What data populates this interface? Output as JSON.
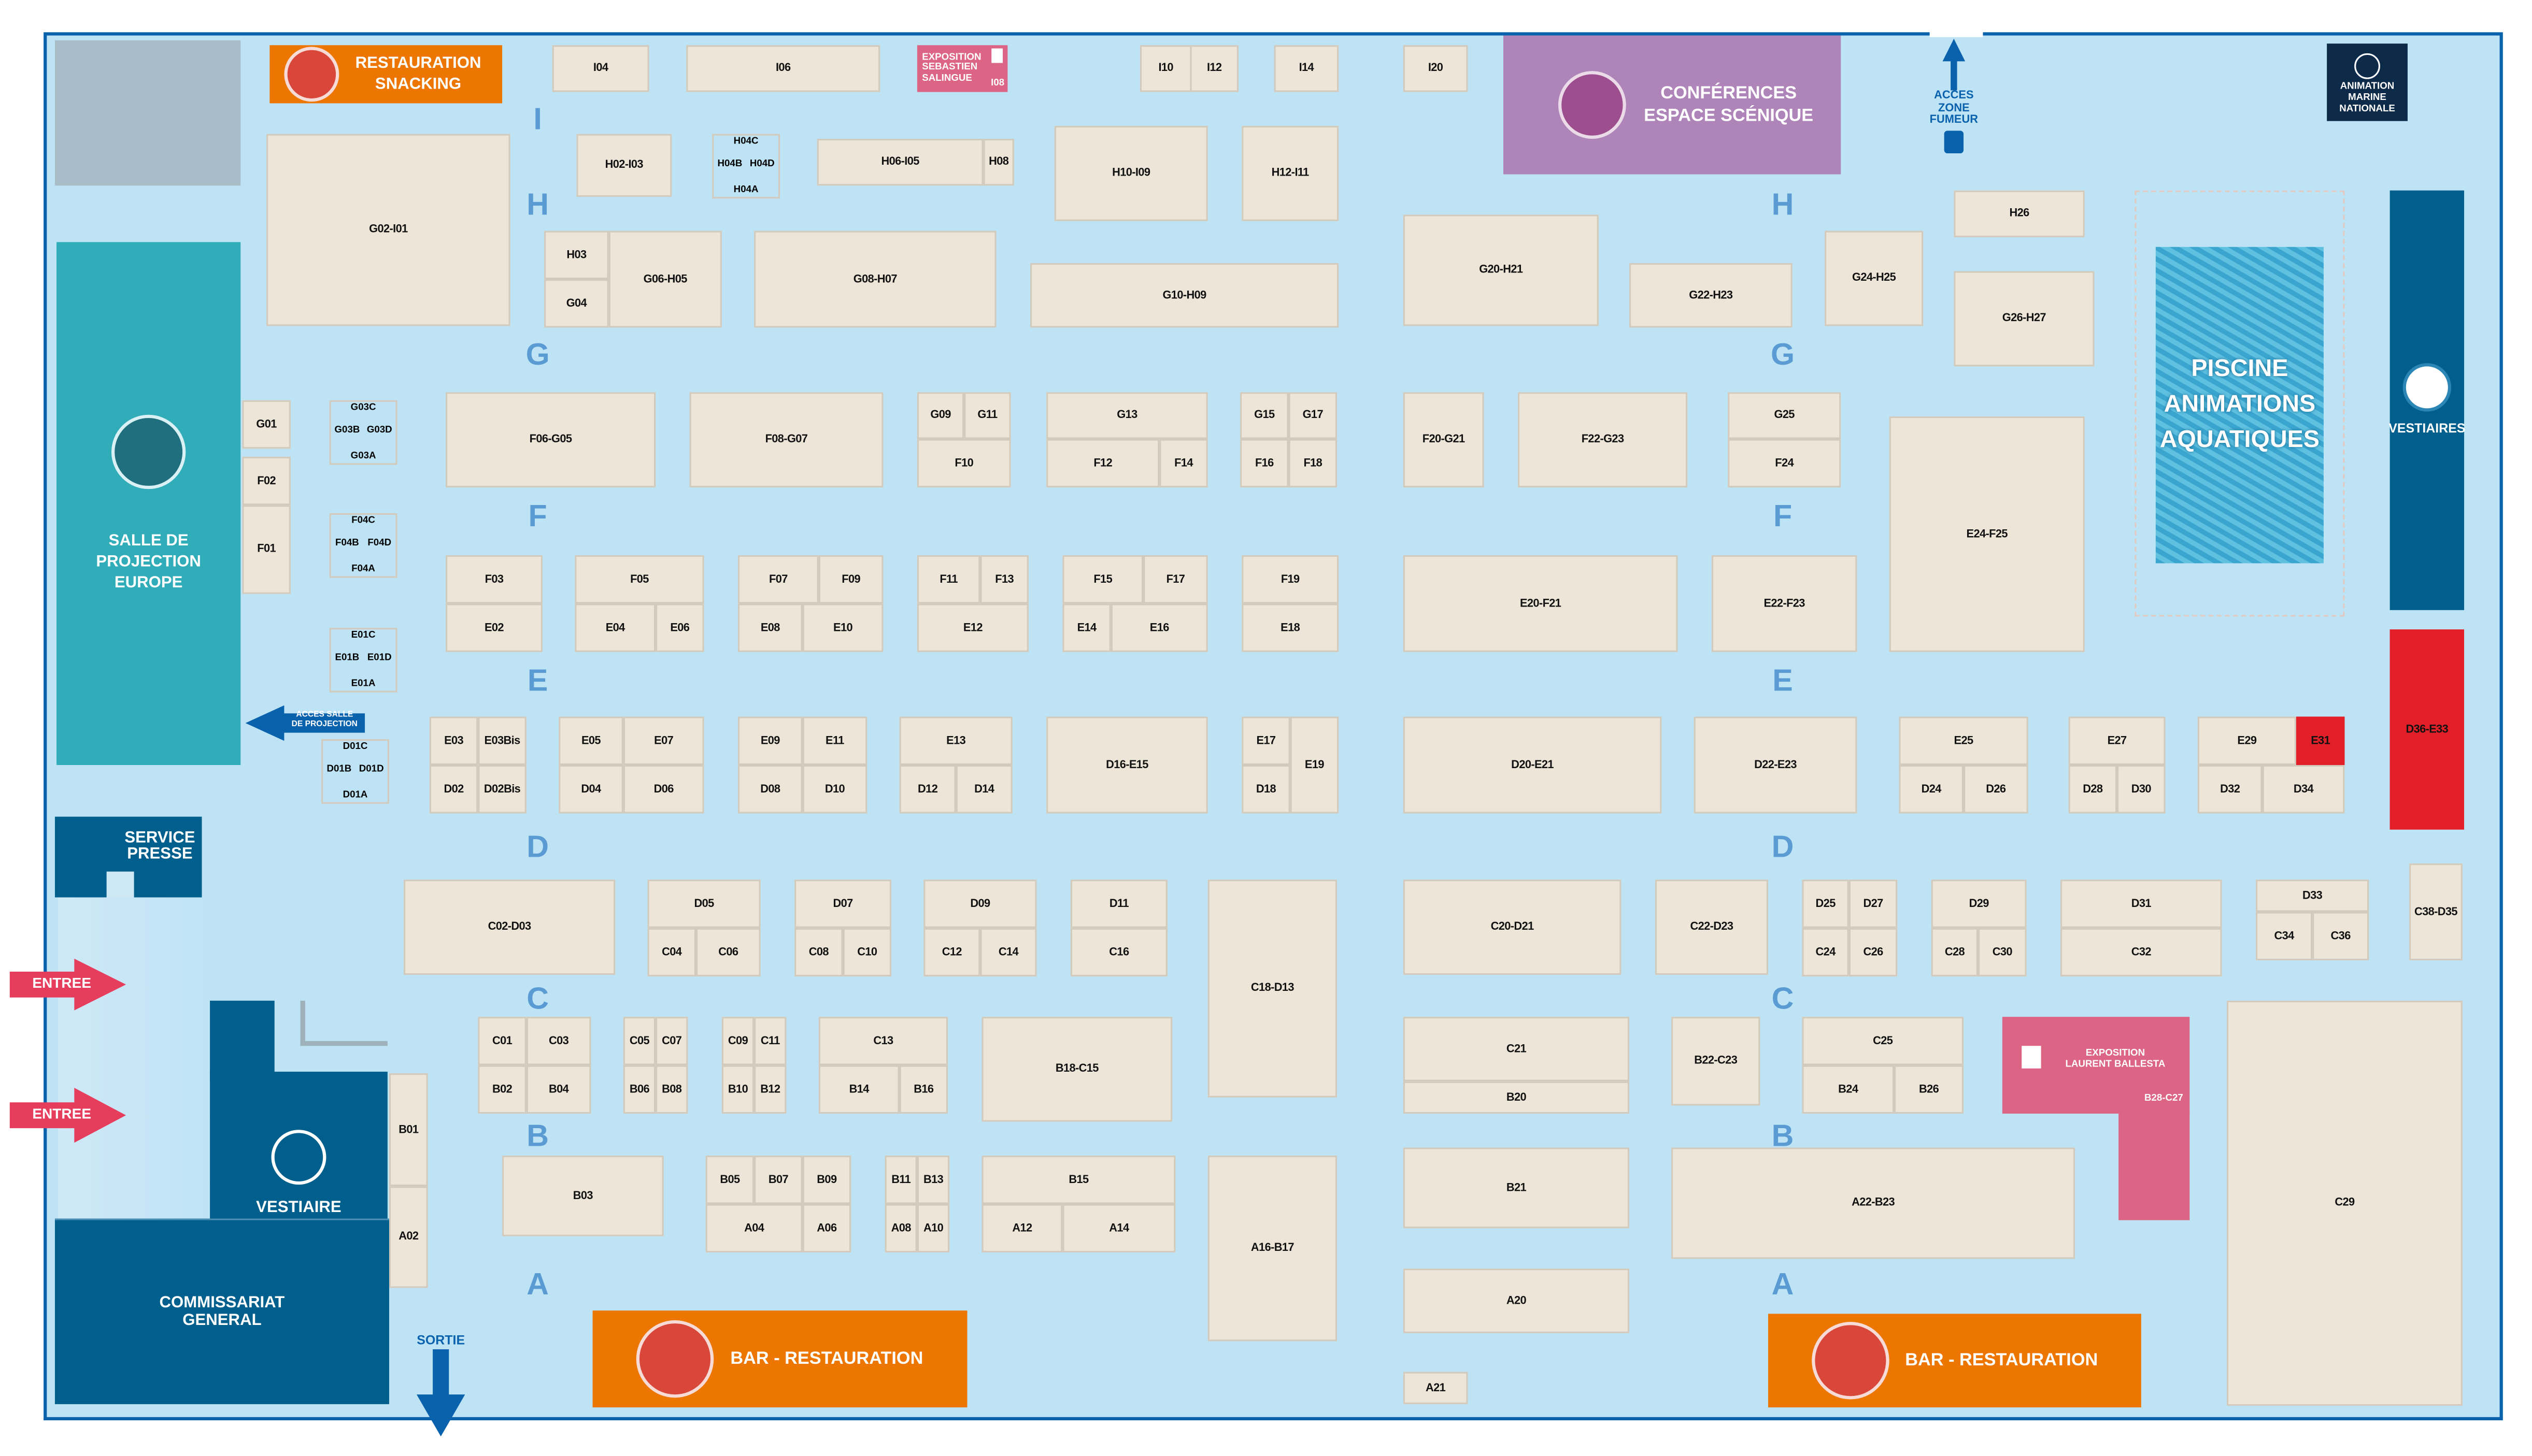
{
  "colors": {
    "floor": "#bde3f5",
    "booth": "#ede6d8",
    "aisle_letter": "#5a9bd3",
    "projection": "#30adb8",
    "dark_blue": "#005f8c",
    "restauration": "#ec7600",
    "conferences": "#ae84b9",
    "exposition": "#dc6585",
    "reserved_red": "#e3202a",
    "marine": "#0d2a48",
    "border": "#0a62ad"
  },
  "zones": {
    "restauration_snacking": [
      "RESTAURATION",
      "SNACKING"
    ],
    "exposition_salingue": [
      "EXPOSITION",
      "SEBASTIEN",
      "SALINGUE"
    ],
    "exposition_salingue_booth": "I08",
    "conferences": [
      "CONFÉRENCES",
      "ESPACE SCÉNIQUE"
    ],
    "acces_fumeur": [
      "ACCES",
      "ZONE",
      "FUMEUR"
    ],
    "marine_nationale": [
      "ANIMATION",
      "MARINE",
      "NATIONALE"
    ],
    "piscine": [
      "PISCINE",
      "ANIMATIONS",
      "AQUATIQUES"
    ],
    "vestiaires_right": "VESTIAIRES",
    "salle_projection": [
      "SALLE DE",
      "PROJECTION",
      "EUROPE"
    ],
    "acces_salle": [
      "ACCES SALLE",
      "DE PROJECTION"
    ],
    "service_presse": [
      "SERVICE",
      "PRESSE"
    ],
    "entree_1": "ENTREE",
    "entree_2": "ENTREE",
    "vestiaire_left": "VESTIAIRE",
    "commissariat": [
      "COMMISSARIAT",
      "GENERAL"
    ],
    "sortie": "SORTIE",
    "bar_1": "BAR - RESTAURATION",
    "bar_2": "BAR - RESTAURATION",
    "exposition_ballesta": [
      "EXPOSITION",
      "LAURENT BALLESTA"
    ],
    "exposition_ballesta_booth": "B28-C27",
    "e31": "E31",
    "d36_e33": "D36-E33"
  },
  "aisles": [
    "I",
    "H",
    "H",
    "G",
    "G",
    "F",
    "F",
    "E",
    "E",
    "D",
    "D",
    "C",
    "C",
    "B",
    "B",
    "A",
    "A"
  ],
  "cross_booths": [
    {
      "top": "H04C",
      "left": "H04B",
      "right": "H04D",
      "bottom": "H04A"
    },
    {
      "top": "G03C",
      "left": "G03B",
      "right": "G03D",
      "bottom": "G03A"
    },
    {
      "top": "F04C",
      "left": "F04B",
      "right": "F04D",
      "bottom": "F04A"
    },
    {
      "top": "E01C",
      "left": "E01B",
      "right": "E01D",
      "bottom": "E01A"
    },
    {
      "top": "D01C",
      "left": "D01B",
      "right": "D01D",
      "bottom": "D01A"
    }
  ],
  "booths": [
    "I04",
    "I06",
    "I10",
    "I12",
    "I14",
    "I20",
    "G02-I01",
    "H02-I03",
    "H06-I05",
    "H08",
    "H10-I09",
    "H12-I11",
    "H03",
    "G04",
    "G06-H05",
    "G08-H07",
    "G10-H09",
    "G20-H21",
    "G22-H23",
    "G24-H25",
    "H26",
    "G26-H27",
    "G01",
    "F02",
    "F01",
    "F06-G05",
    "F08-G07",
    "G09",
    "G11",
    "F10",
    "G13",
    "F12",
    "F14",
    "G15",
    "G17",
    "F16",
    "F18",
    "F20-G21",
    "F22-G23",
    "G25",
    "F24",
    "E24-F25",
    "F03",
    "E02",
    "F05",
    "E04",
    "E06",
    "F07",
    "F09",
    "E08",
    "E10",
    "F11",
    "F13",
    "E12",
    "F15",
    "F17",
    "E14",
    "E16",
    "F19",
    "E18",
    "E20-F21",
    "E22-F23",
    "E03",
    "E03Bis",
    "D02",
    "D02Bis",
    "E05",
    "E07",
    "D04",
    "D06",
    "E09",
    "E11",
    "D08",
    "D10",
    "E13",
    "D12",
    "D14",
    "D16-E15",
    "E17",
    "D18",
    "E19",
    "D20-E21",
    "D22-E23",
    "E25",
    "D24",
    "D26",
    "E27",
    "D28",
    "D30",
    "E29",
    "D32",
    "D34",
    "C02-D03",
    "D05",
    "C04",
    "C06",
    "D07",
    "C08",
    "C10",
    "D09",
    "C12",
    "C14",
    "D11",
    "C16",
    "C18-D13",
    "C20-D21",
    "C22-D23",
    "D25",
    "D27",
    "C24",
    "C26",
    "D29",
    "C28",
    "C30",
    "D31",
    "C32",
    "D33",
    "C34",
    "C36",
    "C38-D35",
    "C01",
    "C03",
    "B02",
    "B04",
    "C05",
    "C07",
    "B06",
    "B08",
    "C09",
    "C11",
    "B10",
    "B12",
    "C13",
    "B14",
    "B16",
    "B18-C15",
    "C21",
    "B20",
    "B22-C23",
    "C25",
    "B24",
    "B26",
    "C29",
    "B01",
    "A02",
    "B03",
    "B05",
    "B07",
    "B09",
    "A04",
    "A06",
    "B11",
    "B13",
    "A08",
    "A10",
    "B15",
    "A12",
    "A14",
    "A16-B17",
    "B21",
    "A22-B23",
    "A20",
    "A21"
  ]
}
